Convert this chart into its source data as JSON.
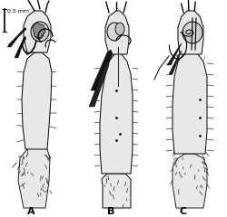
{
  "background_color": "#ffffff",
  "figure_width": 2.5,
  "figure_height": 2.4,
  "dpi": 100,
  "labels": [
    "A",
    "B",
    "C"
  ],
  "label_fontsize": 8,
  "label_fontweight": "bold",
  "scale_bar_text": "0.5 mm",
  "scale_bar_fontsize": 4.5,
  "line_color": "#000000",
  "body_fill": "#f0f0f0",
  "dark_fill": "#555555",
  "medium_fill": "#aaaaaa",
  "light_fill": "#e8e8e8"
}
